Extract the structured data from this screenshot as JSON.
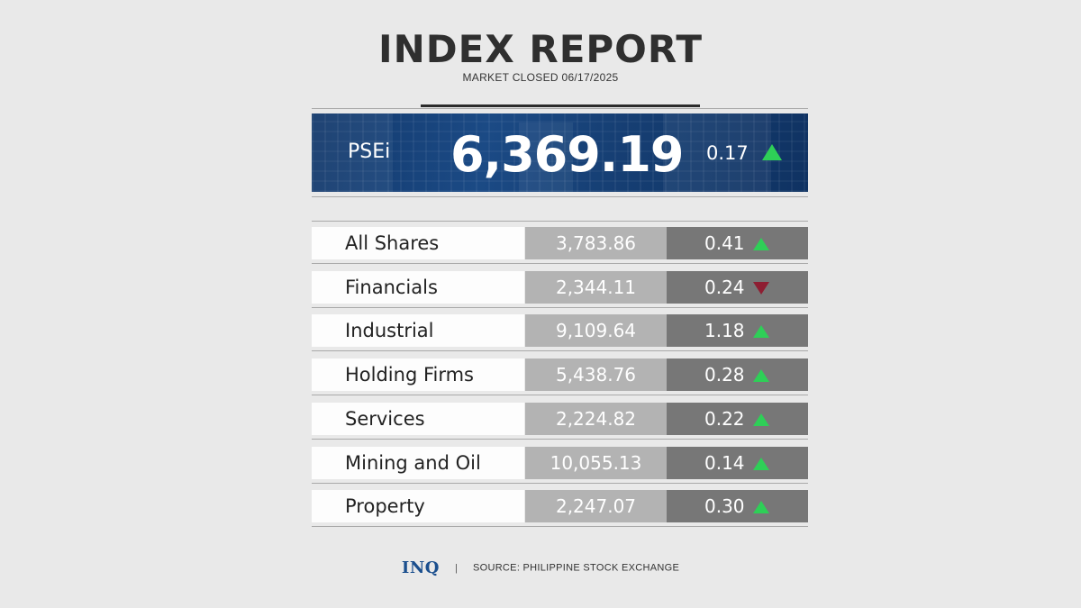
{
  "header": {
    "title": "INDEX REPORT",
    "subtitle": "MARKET CLOSED 06/17/2025"
  },
  "psei": {
    "label": "PSEi",
    "value": "6,369.19",
    "change": "0.17",
    "direction": "up"
  },
  "colors": {
    "up": "#2ecf57",
    "down": "#8e1e32",
    "banner": "#1b4a85",
    "brand": "#1b4f8e"
  },
  "rows": [
    {
      "name": "All Shares",
      "value": "3,783.86",
      "change": "0.41",
      "direction": "up"
    },
    {
      "name": "Financials",
      "value": "2,344.11",
      "change": "0.24",
      "direction": "down"
    },
    {
      "name": "Industrial",
      "value": "9,109.64",
      "change": "1.18",
      "direction": "up"
    },
    {
      "name": "Holding Firms",
      "value": "5,438.76",
      "change": "0.28",
      "direction": "up"
    },
    {
      "name": "Services",
      "value": "2,224.82",
      "change": "0.22",
      "direction": "up"
    },
    {
      "name": "Mining and Oil",
      "value": "10,055.13",
      "change": "0.14",
      "direction": "up"
    },
    {
      "name": "Property",
      "value": "2,247.07",
      "change": "0.30",
      "direction": "up"
    }
  ],
  "footer": {
    "logo": "INQ",
    "separator": "|",
    "source": "SOURCE: PHILIPPINE STOCK EXCHANGE"
  }
}
